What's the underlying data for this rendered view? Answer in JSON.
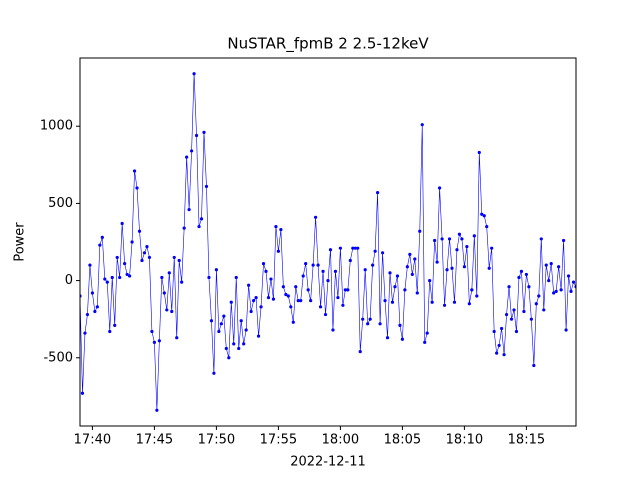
{
  "chart_data": {
    "type": "line",
    "title": "NuSTAR_fpmB 2 2.5-12keV",
    "x_label": "2022-12-11",
    "y_label": "Power",
    "color": "#0000ff",
    "x": [
      "17:39:00",
      "17:39:12",
      "17:39:24",
      "17:39:36",
      "17:39:48",
      "17:40:00",
      "17:40:12",
      "17:40:24",
      "17:40:36",
      "17:40:48",
      "17:41:00",
      "17:41:12",
      "17:41:24",
      "17:41:36",
      "17:41:48",
      "17:42:00",
      "17:42:12",
      "17:42:24",
      "17:42:36",
      "17:42:48",
      "17:43:00",
      "17:43:12",
      "17:43:24",
      "17:43:36",
      "17:43:48",
      "17:44:00",
      "17:44:12",
      "17:44:24",
      "17:44:36",
      "17:44:48",
      "17:45:00",
      "17:45:12",
      "17:45:24",
      "17:45:36",
      "17:45:48",
      "17:46:00",
      "17:46:12",
      "17:46:24",
      "17:46:36",
      "17:46:48",
      "17:47:00",
      "17:47:12",
      "17:47:24",
      "17:47:36",
      "17:47:48",
      "17:48:00",
      "17:48:12",
      "17:48:24",
      "17:48:36",
      "17:48:48",
      "17:49:00",
      "17:49:12",
      "17:49:24",
      "17:49:36",
      "17:49:48",
      "17:50:00",
      "17:50:12",
      "17:50:24",
      "17:50:36",
      "17:50:48",
      "17:51:00",
      "17:51:12",
      "17:51:24",
      "17:51:36",
      "17:51:48",
      "17:52:00",
      "17:52:12",
      "17:52:24",
      "17:52:36",
      "17:52:48",
      "17:53:00",
      "17:53:12",
      "17:53:24",
      "17:53:36",
      "17:53:48",
      "17:54:00",
      "17:54:12",
      "17:54:24",
      "17:54:36",
      "17:54:48",
      "17:55:00",
      "17:55:12",
      "17:55:24",
      "17:55:36",
      "17:55:48",
      "17:56:00",
      "17:56:12",
      "17:56:24",
      "17:56:36",
      "17:56:48",
      "17:57:00",
      "17:57:12",
      "17:57:24",
      "17:57:36",
      "17:57:48",
      "17:58:00",
      "17:58:12",
      "17:58:24",
      "17:58:36",
      "17:58:48",
      "17:59:00",
      "17:59:12",
      "17:59:24",
      "17:59:36",
      "17:59:48",
      "18:00:00",
      "18:00:12",
      "18:00:24",
      "18:00:36",
      "18:00:48",
      "18:01:00",
      "18:01:12",
      "18:01:24",
      "18:01:36",
      "18:01:48",
      "18:02:00",
      "18:02:12",
      "18:02:24",
      "18:02:36",
      "18:02:48",
      "18:03:00",
      "18:03:12",
      "18:03:24",
      "18:03:36",
      "18:03:48",
      "18:04:00",
      "18:04:12",
      "18:04:24",
      "18:04:36",
      "18:04:48",
      "18:05:00",
      "18:05:12",
      "18:05:24",
      "18:05:36",
      "18:05:48",
      "18:06:00",
      "18:06:12",
      "18:06:24",
      "18:06:36",
      "18:06:48",
      "18:07:00",
      "18:07:12",
      "18:07:24",
      "18:07:36",
      "18:07:48",
      "18:08:00",
      "18:08:12",
      "18:08:24",
      "18:08:36",
      "18:08:48",
      "18:09:00",
      "18:09:12",
      "18:09:24",
      "18:09:36",
      "18:09:48",
      "18:10:00",
      "18:10:12",
      "18:10:24",
      "18:10:36",
      "18:10:48",
      "18:11:00",
      "18:11:12",
      "18:11:24",
      "18:11:36",
      "18:11:48",
      "18:12:00",
      "18:12:12",
      "18:12:24",
      "18:12:36",
      "18:12:48",
      "18:13:00",
      "18:13:12",
      "18:13:24",
      "18:13:36",
      "18:13:48",
      "18:14:00",
      "18:14:12",
      "18:14:24",
      "18:14:36",
      "18:14:48",
      "18:15:00",
      "18:15:12",
      "18:15:24",
      "18:15:36",
      "18:15:48",
      "18:16:00",
      "18:16:12",
      "18:16:24",
      "18:16:36",
      "18:16:48",
      "18:17:00",
      "18:17:12",
      "18:17:24",
      "18:17:36",
      "18:17:48",
      "18:18:00",
      "18:18:12",
      "18:18:24",
      "18:18:36",
      "18:18:48",
      "18:19:00"
    ],
    "values": [
      -100,
      -730,
      -340,
      -220,
      100,
      -80,
      -200,
      -170,
      230,
      280,
      10,
      -10,
      -330,
      20,
      -290,
      150,
      20,
      370,
      110,
      40,
      30,
      250,
      710,
      600,
      320,
      130,
      180,
      220,
      150,
      -330,
      -400,
      -840,
      -390,
      20,
      -80,
      -190,
      50,
      -200,
      150,
      -370,
      130,
      -10,
      340,
      800,
      460,
      840,
      1340,
      940,
      350,
      400,
      960,
      610,
      20,
      -260,
      -600,
      70,
      -330,
      -280,
      -230,
      -440,
      -500,
      -140,
      -410,
      20,
      -440,
      -260,
      -410,
      -320,
      -30,
      -200,
      -130,
      -110,
      -360,
      -170,
      110,
      60,
      -110,
      10,
      -120,
      350,
      190,
      330,
      -40,
      -90,
      -100,
      -170,
      -270,
      -40,
      -130,
      -130,
      30,
      110,
      -60,
      -130,
      100,
      410,
      100,
      -170,
      60,
      -220,
      0,
      200,
      -320,
      60,
      -110,
      210,
      -160,
      -60,
      -60,
      130,
      210,
      210,
      210,
      -460,
      -250,
      70,
      -280,
      -250,
      100,
      190,
      570,
      -280,
      180,
      -130,
      -370,
      50,
      -140,
      -40,
      30,
      -290,
      -380,
      -60,
      90,
      170,
      40,
      140,
      -80,
      320,
      1010,
      -400,
      -340,
      0,
      -140,
      260,
      120,
      600,
      270,
      -160,
      70,
      270,
      80,
      -140,
      200,
      300,
      270,
      90,
      220,
      -150,
      -60,
      290,
      -100,
      830,
      430,
      420,
      350,
      80,
      210,
      -330,
      -470,
      -420,
      -310,
      -480,
      -220,
      -40,
      -250,
      -190,
      -330,
      20,
      60,
      -200,
      40,
      -40,
      -250,
      -550,
      -150,
      -100,
      270,
      -190,
      100,
      0,
      110,
      -80,
      -70,
      90,
      -60,
      260,
      -320,
      30,
      -70,
      -10,
      -40
    ],
    "xlim": [
      "17:39:00",
      "18:19:00"
    ],
    "xticks": [
      {
        "value": "17:40:00",
        "label": "17:40"
      },
      {
        "value": "17:45:00",
        "label": "17:45"
      },
      {
        "value": "17:50:00",
        "label": "17:50"
      },
      {
        "value": "17:55:00",
        "label": "17:55"
      },
      {
        "value": "18:00:00",
        "label": "18:00"
      },
      {
        "value": "18:05:00",
        "label": "18:05"
      },
      {
        "value": "18:10:00",
        "label": "18:10"
      },
      {
        "value": "18:15:00",
        "label": "18:15"
      }
    ],
    "ylim": [
      -942,
      1442
    ],
    "yticks": [
      -500,
      0,
      500,
      1000
    ]
  }
}
